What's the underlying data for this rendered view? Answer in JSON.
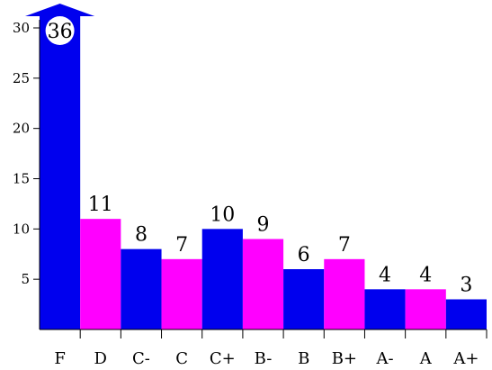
{
  "chart_data": {
    "type": "bar",
    "title": "",
    "xlabel": "",
    "ylabel": "",
    "categories": [
      "F",
      "D",
      "C-",
      "C",
      "C+",
      "B-",
      "B",
      "B+",
      "A-",
      "A",
      "A+"
    ],
    "values": [
      36,
      11,
      8,
      7,
      10,
      9,
      6,
      7,
      4,
      4,
      3
    ],
    "value_labels": [
      "36",
      "11",
      "8",
      "7",
      "10",
      "9",
      "6",
      "7",
      "4",
      "4",
      "3"
    ],
    "bar_colors": [
      "#0000ee",
      "#ff00ff",
      "#0000ee",
      "#ff00ff",
      "#0000ee",
      "#ff00ff",
      "#0000ee",
      "#ff00ff",
      "#0000ee",
      "#ff00ff",
      "#0000ee"
    ],
    "ylim": [
      0,
      31
    ],
    "yticks": [
      5,
      10,
      15,
      20,
      25,
      30
    ],
    "ytick_labels": [
      "5",
      "10",
      "15",
      "20",
      "25",
      "30"
    ],
    "clipped_bar": "F",
    "grid": false,
    "legend": "none"
  }
}
